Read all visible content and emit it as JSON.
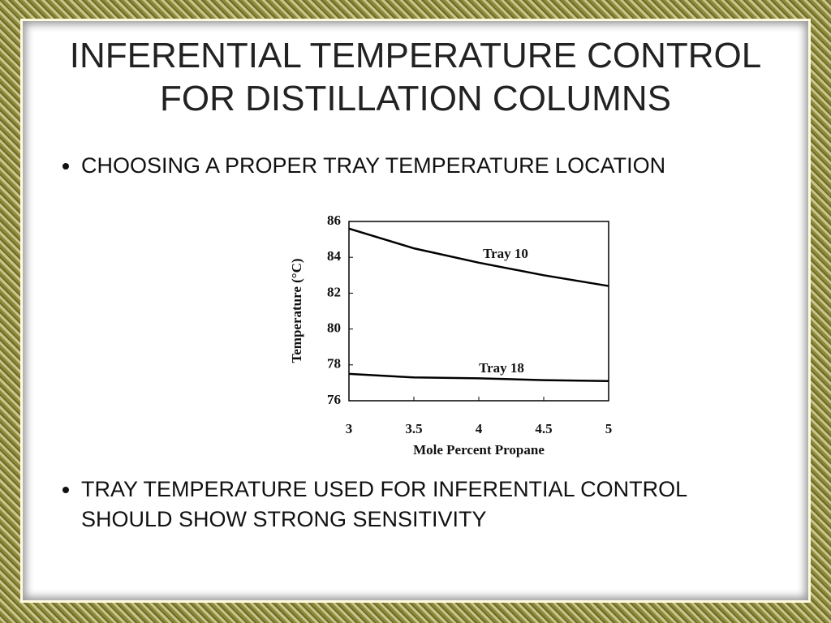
{
  "title": [
    "INFERENTIAL TEMPERATURE CONTROL",
    "FOR DISTILLATION COLUMNS"
  ],
  "bullets": [
    "CHOOSING A PROPER TRAY TEMPERATURE LOCATION",
    "TRAY TEMPERATURE USED FOR INFERENTIAL CONTROL SHOULD SHOW STRONG SENSITIVITY"
  ],
  "chart_data": {
    "type": "line",
    "x": [
      3,
      3.5,
      4,
      4.5,
      5
    ],
    "series": [
      {
        "name": "Tray 10",
        "color": "#000000",
        "values": [
          85.6,
          84.5,
          83.7,
          83.0,
          82.4
        ]
      },
      {
        "name": "Tray 18",
        "color": "#000000",
        "values": [
          77.5,
          77.3,
          77.25,
          77.15,
          77.1
        ]
      }
    ],
    "x_label": "Mole Percent Propane",
    "y_label": "Temperature (°C)",
    "xlim": [
      3,
      5
    ],
    "xticks": [
      3,
      3.5,
      4,
      4.5,
      5
    ],
    "ylim": [
      76,
      86
    ],
    "yticks": [
      76,
      78,
      80,
      82,
      84,
      86
    ],
    "grid": false
  }
}
